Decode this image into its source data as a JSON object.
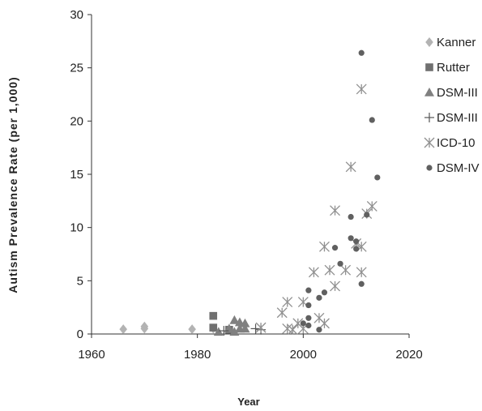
{
  "chart_data": {
    "type": "scatter",
    "title": "",
    "xlabel": "Year",
    "ylabel": "Autism Prevalence Rate (per 1,000)",
    "xlim": [
      1960,
      2020
    ],
    "ylim": [
      0,
      30
    ],
    "xticks": [
      1960,
      1980,
      2000,
      2020
    ],
    "yticks": [
      0,
      5,
      10,
      15,
      20,
      25,
      30
    ],
    "grid": false,
    "legend_position": "right",
    "series": [
      {
        "name": "Kanner",
        "marker": "diamond",
        "color": "#b3b3b3",
        "points": [
          [
            1966,
            0.45
          ],
          [
            1970,
            0.7
          ],
          [
            1970,
            0.5
          ],
          [
            1979,
            0.45
          ],
          [
            1983,
            0.5
          ]
        ]
      },
      {
        "name": "Rutter",
        "marker": "square",
        "color": "#707070",
        "points": [
          [
            1983,
            1.7
          ],
          [
            1983,
            0.6
          ],
          [
            1986,
            0.4
          ]
        ]
      },
      {
        "name": "DSM-III",
        "marker": "triangle",
        "color": "#808080",
        "points": [
          [
            1984,
            0.2
          ],
          [
            1986,
            0.5
          ],
          [
            1987,
            1.3
          ],
          [
            1988,
            1.1
          ],
          [
            1988,
            0.5
          ],
          [
            1989,
            1.0
          ],
          [
            1989,
            0.5
          ],
          [
            1987,
            0.2
          ]
        ]
      },
      {
        "name": "DSM-III",
        "marker": "plus",
        "color": "#555555",
        "points": [
          [
            1991,
            0.5
          ],
          [
            1985,
            0.3
          ],
          [
            1992,
            0.4
          ]
        ]
      },
      {
        "name": "ICD-10",
        "marker": "star",
        "color": "#909090",
        "points": [
          [
            1992,
            0.6
          ],
          [
            1996,
            2.0
          ],
          [
            1997,
            3.0
          ],
          [
            1997,
            0.5
          ],
          [
            1998,
            0.4
          ],
          [
            1999,
            1.0
          ],
          [
            2000,
            3.0
          ],
          [
            2000,
            0.5
          ],
          [
            2002,
            5.8
          ],
          [
            2003,
            1.5
          ],
          [
            2004,
            8.2
          ],
          [
            2004,
            1.0
          ],
          [
            2005,
            6.0
          ],
          [
            2006,
            11.6
          ],
          [
            2006,
            4.5
          ],
          [
            2008,
            6.0
          ],
          [
            2009,
            15.7
          ],
          [
            2010,
            8.5
          ],
          [
            2011,
            23.0
          ],
          [
            2011,
            5.8
          ],
          [
            2011,
            8.2
          ],
          [
            2012,
            11.3
          ],
          [
            2013,
            12.0
          ]
        ]
      },
      {
        "name": "DSM-IV",
        "marker": "circle",
        "color": "#606060",
        "points": [
          [
            2000,
            1.0
          ],
          [
            2001,
            4.1
          ],
          [
            2001,
            2.7
          ],
          [
            2001,
            1.5
          ],
          [
            2003,
            3.4
          ],
          [
            2004,
            3.9
          ],
          [
            2006,
            8.1
          ],
          [
            2007,
            6.6
          ],
          [
            2009,
            11.0
          ],
          [
            2009,
            9.0
          ],
          [
            2010,
            8.7
          ],
          [
            2010,
            8.0
          ],
          [
            2011,
            26.4
          ],
          [
            2011,
            4.7
          ],
          [
            2012,
            11.2
          ],
          [
            2013,
            20.1
          ],
          [
            2014,
            14.7
          ],
          [
            2003,
            0.4
          ],
          [
            2001,
            0.8
          ]
        ]
      }
    ]
  }
}
